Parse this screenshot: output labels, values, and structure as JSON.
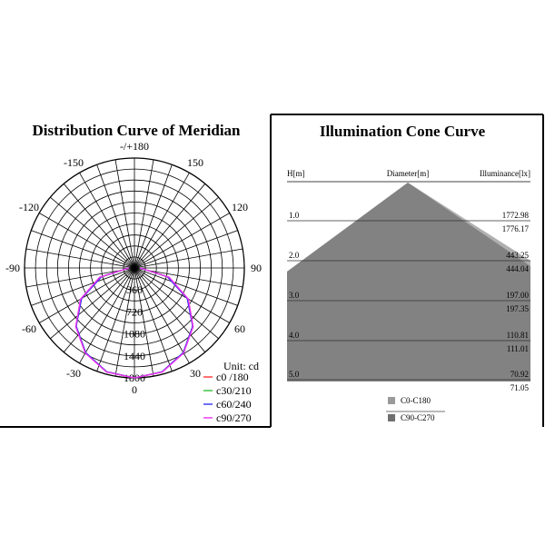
{
  "chart_data": [
    {
      "type": "polar",
      "title": "Distribution Curve of  Meridian",
      "angle_labels": [
        {
          "angle": 180,
          "text": "-/+180"
        },
        {
          "angle": -150,
          "text": "-150"
        },
        {
          "angle": 150,
          "text": "150"
        },
        {
          "angle": -120,
          "text": "-120"
        },
        {
          "angle": 120,
          "text": "120"
        },
        {
          "angle": -90,
          "text": "-90"
        },
        {
          "angle": 90,
          "text": "90"
        },
        {
          "angle": -60,
          "text": "-60"
        },
        {
          "angle": 60,
          "text": "60"
        },
        {
          "angle": -30,
          "text": "-30"
        },
        {
          "angle": 30,
          "text": "30"
        },
        {
          "angle": 0,
          "text": "0"
        }
      ],
      "radial_ticks": [
        360,
        720,
        1080,
        1440,
        1800
      ],
      "r_max": 1800,
      "unit_label": "Unit: cd",
      "series": [
        {
          "name": "c0 /180",
          "color": "#ff3333",
          "angles": [
            -90,
            -75,
            -60,
            -45,
            -30,
            -15,
            0,
            15,
            30,
            45,
            60,
            75,
            90
          ],
          "values": [
            90,
            560,
            1000,
            1350,
            1600,
            1760,
            1800,
            1760,
            1600,
            1350,
            1000,
            560,
            90
          ]
        },
        {
          "name": "c30/210",
          "color": "#33bb33",
          "angles": [
            -90,
            -75,
            -60,
            -45,
            -30,
            -15,
            0,
            15,
            30,
            45,
            60,
            75,
            90
          ],
          "values": [
            90,
            580,
            1010,
            1350,
            1600,
            1760,
            1800,
            1760,
            1600,
            1350,
            1010,
            580,
            90
          ]
        },
        {
          "name": "c60/240",
          "color": "#3333ff",
          "angles": [
            -90,
            -75,
            -60,
            -45,
            -30,
            -15,
            0,
            15,
            30,
            45,
            60,
            75,
            90
          ],
          "values": [
            90,
            560,
            1000,
            1350,
            1600,
            1760,
            1800,
            1760,
            1600,
            1350,
            1000,
            560,
            90
          ]
        },
        {
          "name": "c90/270",
          "color": "#ee33ee",
          "angles": [
            -90,
            -75,
            -60,
            -45,
            -30,
            -15,
            0,
            15,
            30,
            45,
            60,
            75,
            90
          ],
          "values": [
            90,
            590,
            1020,
            1360,
            1610,
            1765,
            1800,
            1765,
            1610,
            1360,
            1020,
            590,
            90
          ]
        }
      ]
    },
    {
      "type": "area",
      "title": "Illumination Cone Curve",
      "header": {
        "left": "H[m]",
        "center": "Diameter[m]",
        "right": "Illuminance[lx]"
      },
      "rows": [
        {
          "h": "1.0",
          "c0": "1772.98",
          "c90": "1776.17"
        },
        {
          "h": "2.0",
          "c0": "443.25",
          "c90": "444.04"
        },
        {
          "h": "3.0",
          "c0": "197.00",
          "c90": "197.35"
        },
        {
          "h": "4.0",
          "c0": "110.81",
          "c90": "111.01"
        },
        {
          "h": "5.0",
          "c0": "70.92",
          "c90": "71.05"
        }
      ],
      "series": [
        {
          "name": "C0-C180",
          "color": "#9a9a9a"
        },
        {
          "name": "C90-C270",
          "color": "#6f6f6f"
        }
      ]
    }
  ]
}
